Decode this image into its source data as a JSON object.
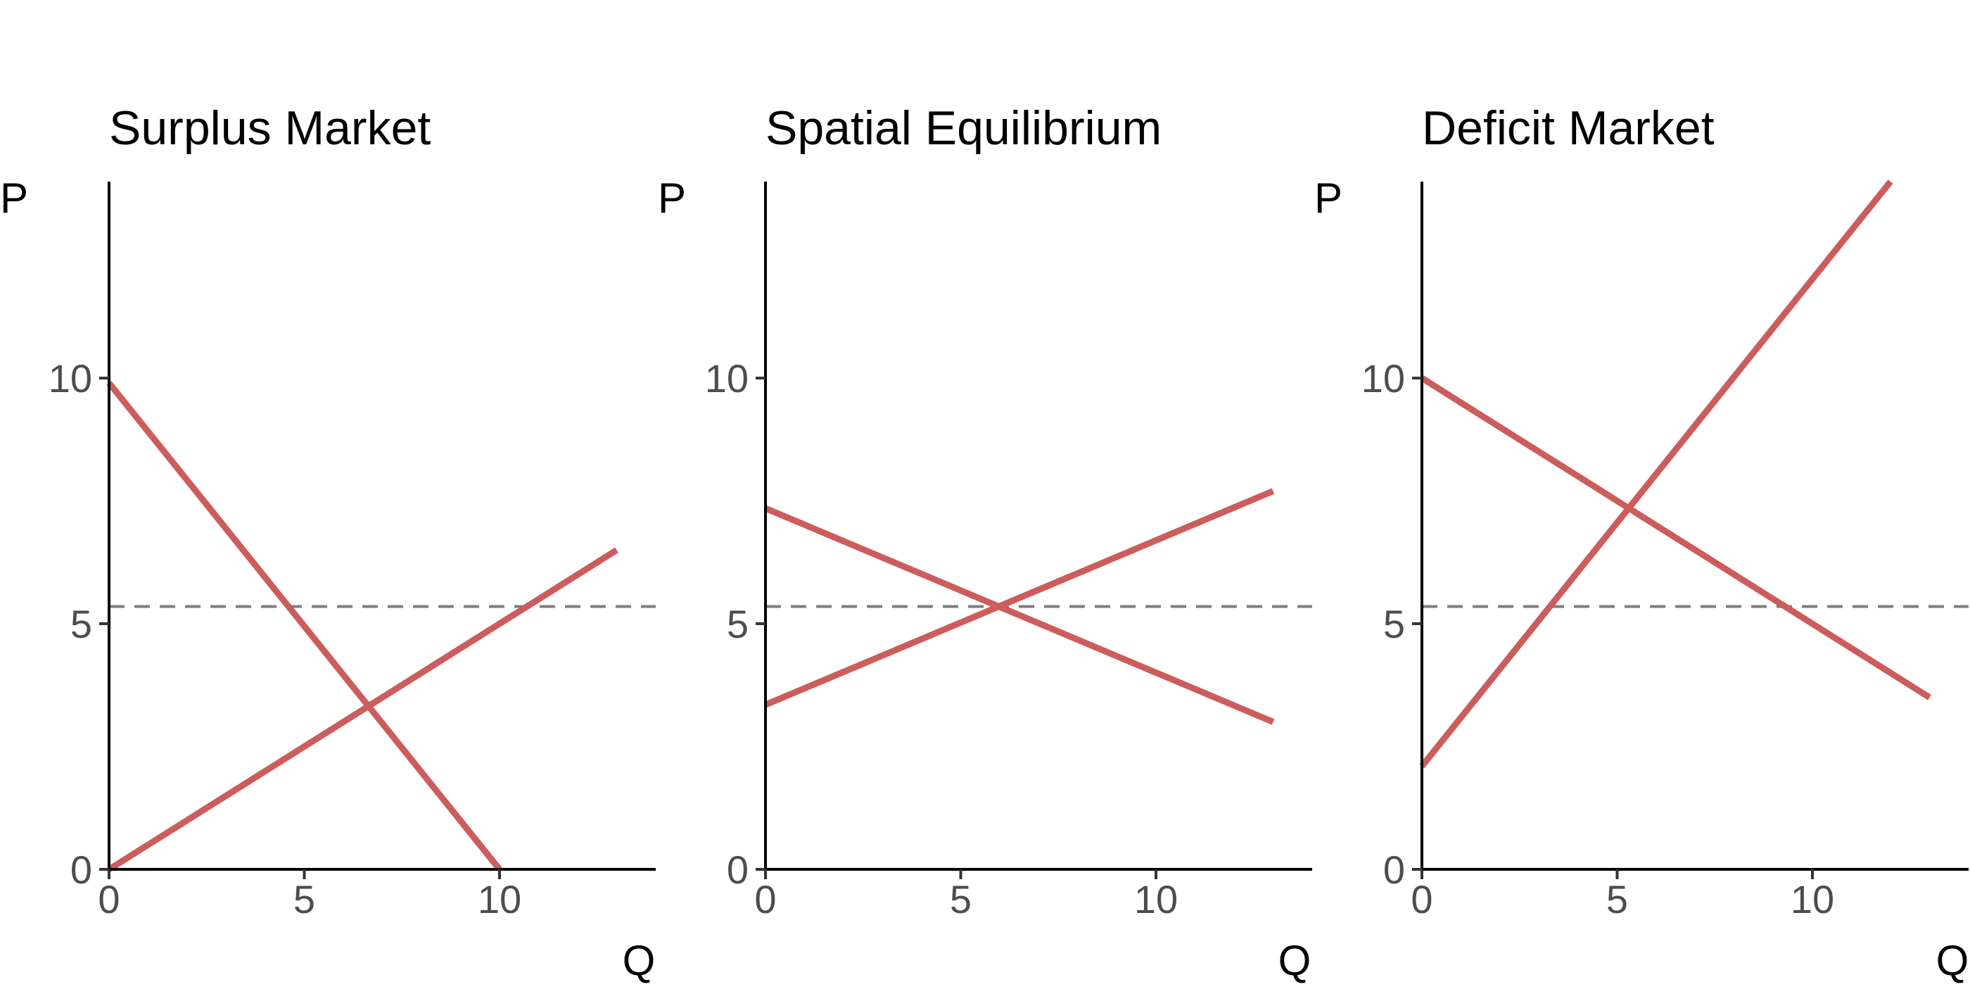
{
  "figure": {
    "panels_count": 3
  },
  "chart_data": [
    {
      "type": "line",
      "title": "Surplus Market",
      "xlabel": "Q",
      "ylabel": "P",
      "xlim": [
        0,
        14
      ],
      "ylim": [
        0,
        14
      ],
      "x_ticks": [
        0,
        5,
        10
      ],
      "y_ticks": [
        0,
        5,
        10
      ],
      "grid": false,
      "series": [
        {
          "x": [
            0,
            10
          ],
          "y": [
            9.9,
            0
          ],
          "color": "#cd5c5c"
        },
        {
          "x": [
            0,
            13
          ],
          "y": [
            0,
            6.5
          ],
          "color": "#cd5c5c"
        }
      ],
      "reference_lines": [
        {
          "y": 5.35,
          "style": "dashed",
          "color": "#7f7f7f"
        }
      ]
    },
    {
      "type": "line",
      "title": "Spatial Equilibrium",
      "xlabel": "Q",
      "ylabel": "P",
      "xlim": [
        0,
        14
      ],
      "ylim": [
        0,
        14
      ],
      "x_ticks": [
        0,
        5,
        10
      ],
      "y_ticks": [
        0,
        5,
        10
      ],
      "grid": false,
      "series": [
        {
          "x": [
            0,
            13
          ],
          "y": [
            7.35,
            3.0
          ],
          "color": "#cd5c5c"
        },
        {
          "x": [
            0,
            13
          ],
          "y": [
            3.35,
            7.7
          ],
          "color": "#cd5c5c"
        }
      ],
      "reference_lines": [
        {
          "y": 5.35,
          "style": "dashed",
          "color": "#7f7f7f"
        }
      ]
    },
    {
      "type": "line",
      "title": "Deficit Market",
      "xlabel": "Q",
      "ylabel": "P",
      "xlim": [
        0,
        14
      ],
      "ylim": [
        0,
        14
      ],
      "x_ticks": [
        0,
        5,
        10
      ],
      "y_ticks": [
        0,
        5,
        10
      ],
      "grid": false,
      "series": [
        {
          "x": [
            0,
            13
          ],
          "y": [
            10,
            3.5
          ],
          "color": "#cd5c5c"
        },
        {
          "x": [
            0,
            12
          ],
          "y": [
            2.1,
            14
          ],
          "color": "#cd5c5c"
        }
      ],
      "reference_lines": [
        {
          "y": 5.35,
          "style": "dashed",
          "color": "#7f7f7f"
        }
      ]
    }
  ]
}
